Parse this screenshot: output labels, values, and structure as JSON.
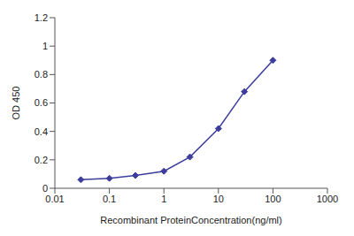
{
  "chart_data": {
    "type": "line",
    "x_label": "Recombinant ProteinConcentration(ng/ml)",
    "y_label": "OD 450",
    "x": [
      0.03,
      0.1,
      0.3,
      1,
      3,
      10,
      30,
      100
    ],
    "values": [
      0.06,
      0.07,
      0.09,
      0.12,
      0.22,
      0.42,
      0.68,
      0.9
    ],
    "color": "#3d3d9e",
    "marker": "diamond",
    "log": "x",
    "xlim": [
      0.01,
      1000
    ],
    "xticks": [
      0.01,
      0.1,
      1,
      10,
      100,
      1000
    ],
    "ylim": [
      0,
      1.2
    ],
    "yticks": [
      0,
      0.2,
      0.4,
      0.6,
      0.8,
      1,
      1.2
    ],
    "grid": false
  }
}
